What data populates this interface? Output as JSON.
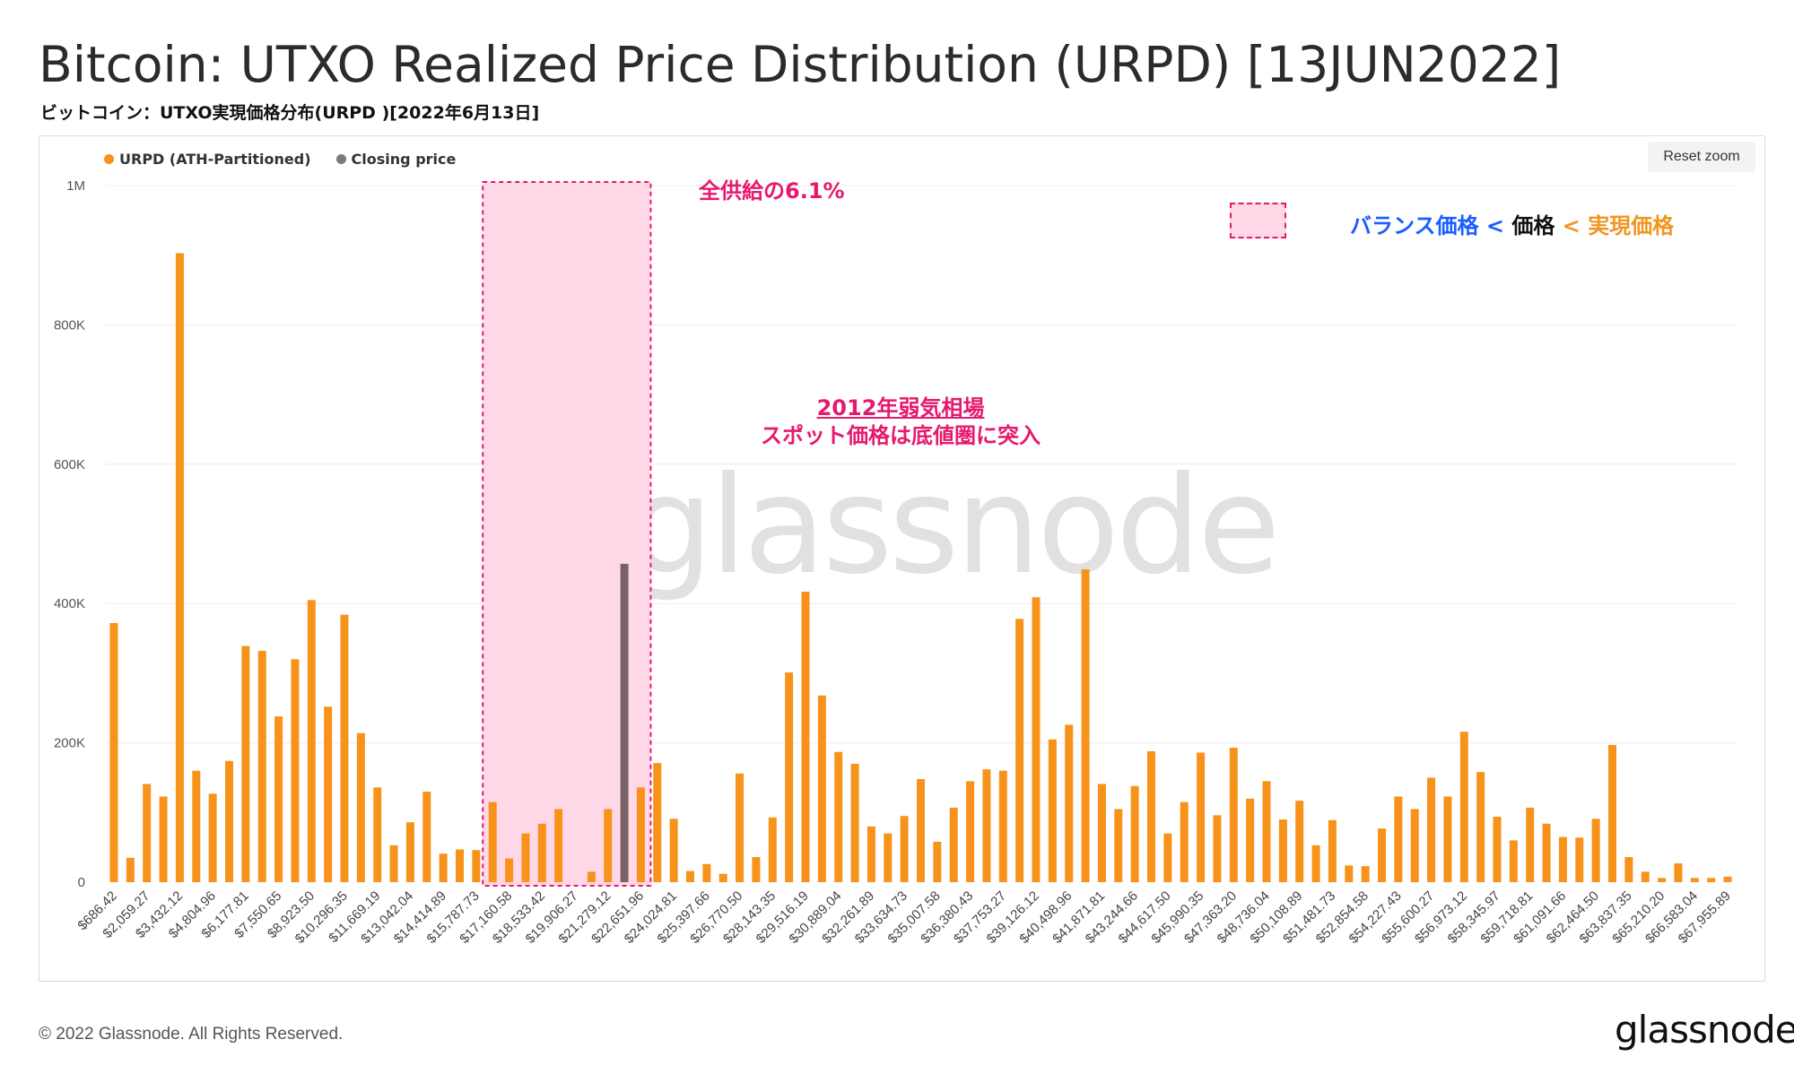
{
  "title": "Bitcoin: UTXO Realized Price Distribution (URPD) [13JUN2022]",
  "subtitle": "ビットコイン：UTXO実現価格分布(URPD )[2022年6月13日]",
  "reset_zoom": "Reset zoom",
  "legend": [
    {
      "label": "URPD (ATH-Partitioned)",
      "color": "#f7931a"
    },
    {
      "label": "Closing price",
      "color": "#7a7a7a"
    }
  ],
  "watermark": "glassnode",
  "annotations": {
    "supply_pct": "全供給の6.1%",
    "bear_line1": "2012年弱気相場",
    "bear_line2": "スポット価格は底値圏に突入",
    "key_part1": "バランス価格",
    "key_lt1": "<",
    "key_part2": "価格",
    "key_lt2": "<",
    "key_part3": "実現価格"
  },
  "footer": {
    "copyright": "© 2022 Glassnode. All Rights Reserved.",
    "logo": "glassnode"
  },
  "colors": {
    "bar": "#f7931a",
    "closing_bar": "#7a6166",
    "highlight_fill": "#ffd8e8",
    "highlight_border": "#e6196e"
  },
  "chart_data": {
    "type": "bar",
    "ylim": [
      0,
      1000000
    ],
    "yticks": [
      0,
      200000,
      400000,
      600000,
      800000,
      1000000
    ],
    "ytick_labels": [
      "0",
      "200K",
      "400K",
      "600K",
      "800K",
      "1M"
    ],
    "xtick_labels": [
      "$686.42",
      "$2,059.27",
      "$3,432.12",
      "$4,804.96",
      "$6,177.81",
      "$7,550.65",
      "$8,923.50",
      "$10,296.35",
      "$11,669.19",
      "$13,042.04",
      "$14,414.89",
      "$15,787.73",
      "$17,160.58",
      "$18,533.42",
      "$19,906.27",
      "$21,279.12",
      "$22,651.96",
      "$24,024.81",
      "$25,397.66",
      "$26,770.50",
      "$28,143.35",
      "$29,516.19",
      "$30,889.04",
      "$32,261.89",
      "$33,634.73",
      "$35,007.58",
      "$36,380.43",
      "$37,753.27",
      "$39,126.12",
      "$40,498.96",
      "$41,871.81",
      "$43,244.66",
      "$44,617.50",
      "$45,990.35",
      "$47,363.20",
      "$48,736.04",
      "$50,108.89",
      "$51,481.73",
      "$52,854.58",
      "$54,227.43",
      "$55,600.27",
      "$56,973.12",
      "$58,345.97",
      "$59,718.81",
      "$61,091.66",
      "$62,464.50",
      "$63,837.35",
      "$65,210.20",
      "$66,583.04",
      "$67,955.89"
    ],
    "values": [
      372000,
      35000,
      141000,
      123000,
      903000,
      160000,
      127000,
      174000,
      339000,
      332000,
      238000,
      320000,
      405000,
      252000,
      384000,
      214000,
      136000,
      53000,
      86000,
      130000,
      41000,
      47000,
      46000,
      115000,
      34000,
      70000,
      84000,
      105000,
      0,
      15000,
      105000,
      457000,
      136000,
      171000,
      91000,
      16000,
      26000,
      12000,
      156000,
      36000,
      93000,
      301000,
      417000,
      268000,
      187000,
      170000,
      80000,
      70000,
      95000,
      148000,
      58000,
      107000,
      145000,
      162000,
      160000,
      378000,
      409000,
      205000,
      226000,
      449000,
      141000,
      105000,
      138000,
      188000,
      70000,
      115000,
      186000,
      96000,
      193000,
      120000,
      145000,
      90000,
      117000,
      53000,
      89000,
      24000,
      23000,
      77000,
      123000,
      105000,
      150000,
      123000,
      216000,
      158000,
      94000,
      60000,
      107000,
      84000,
      65000,
      64000,
      91000,
      197000,
      36000,
      15000,
      6000,
      27000,
      6000,
      6000,
      8000
    ],
    "closing_price_index": 31,
    "highlight_range_index": [
      23,
      32
    ],
    "grid": true
  }
}
